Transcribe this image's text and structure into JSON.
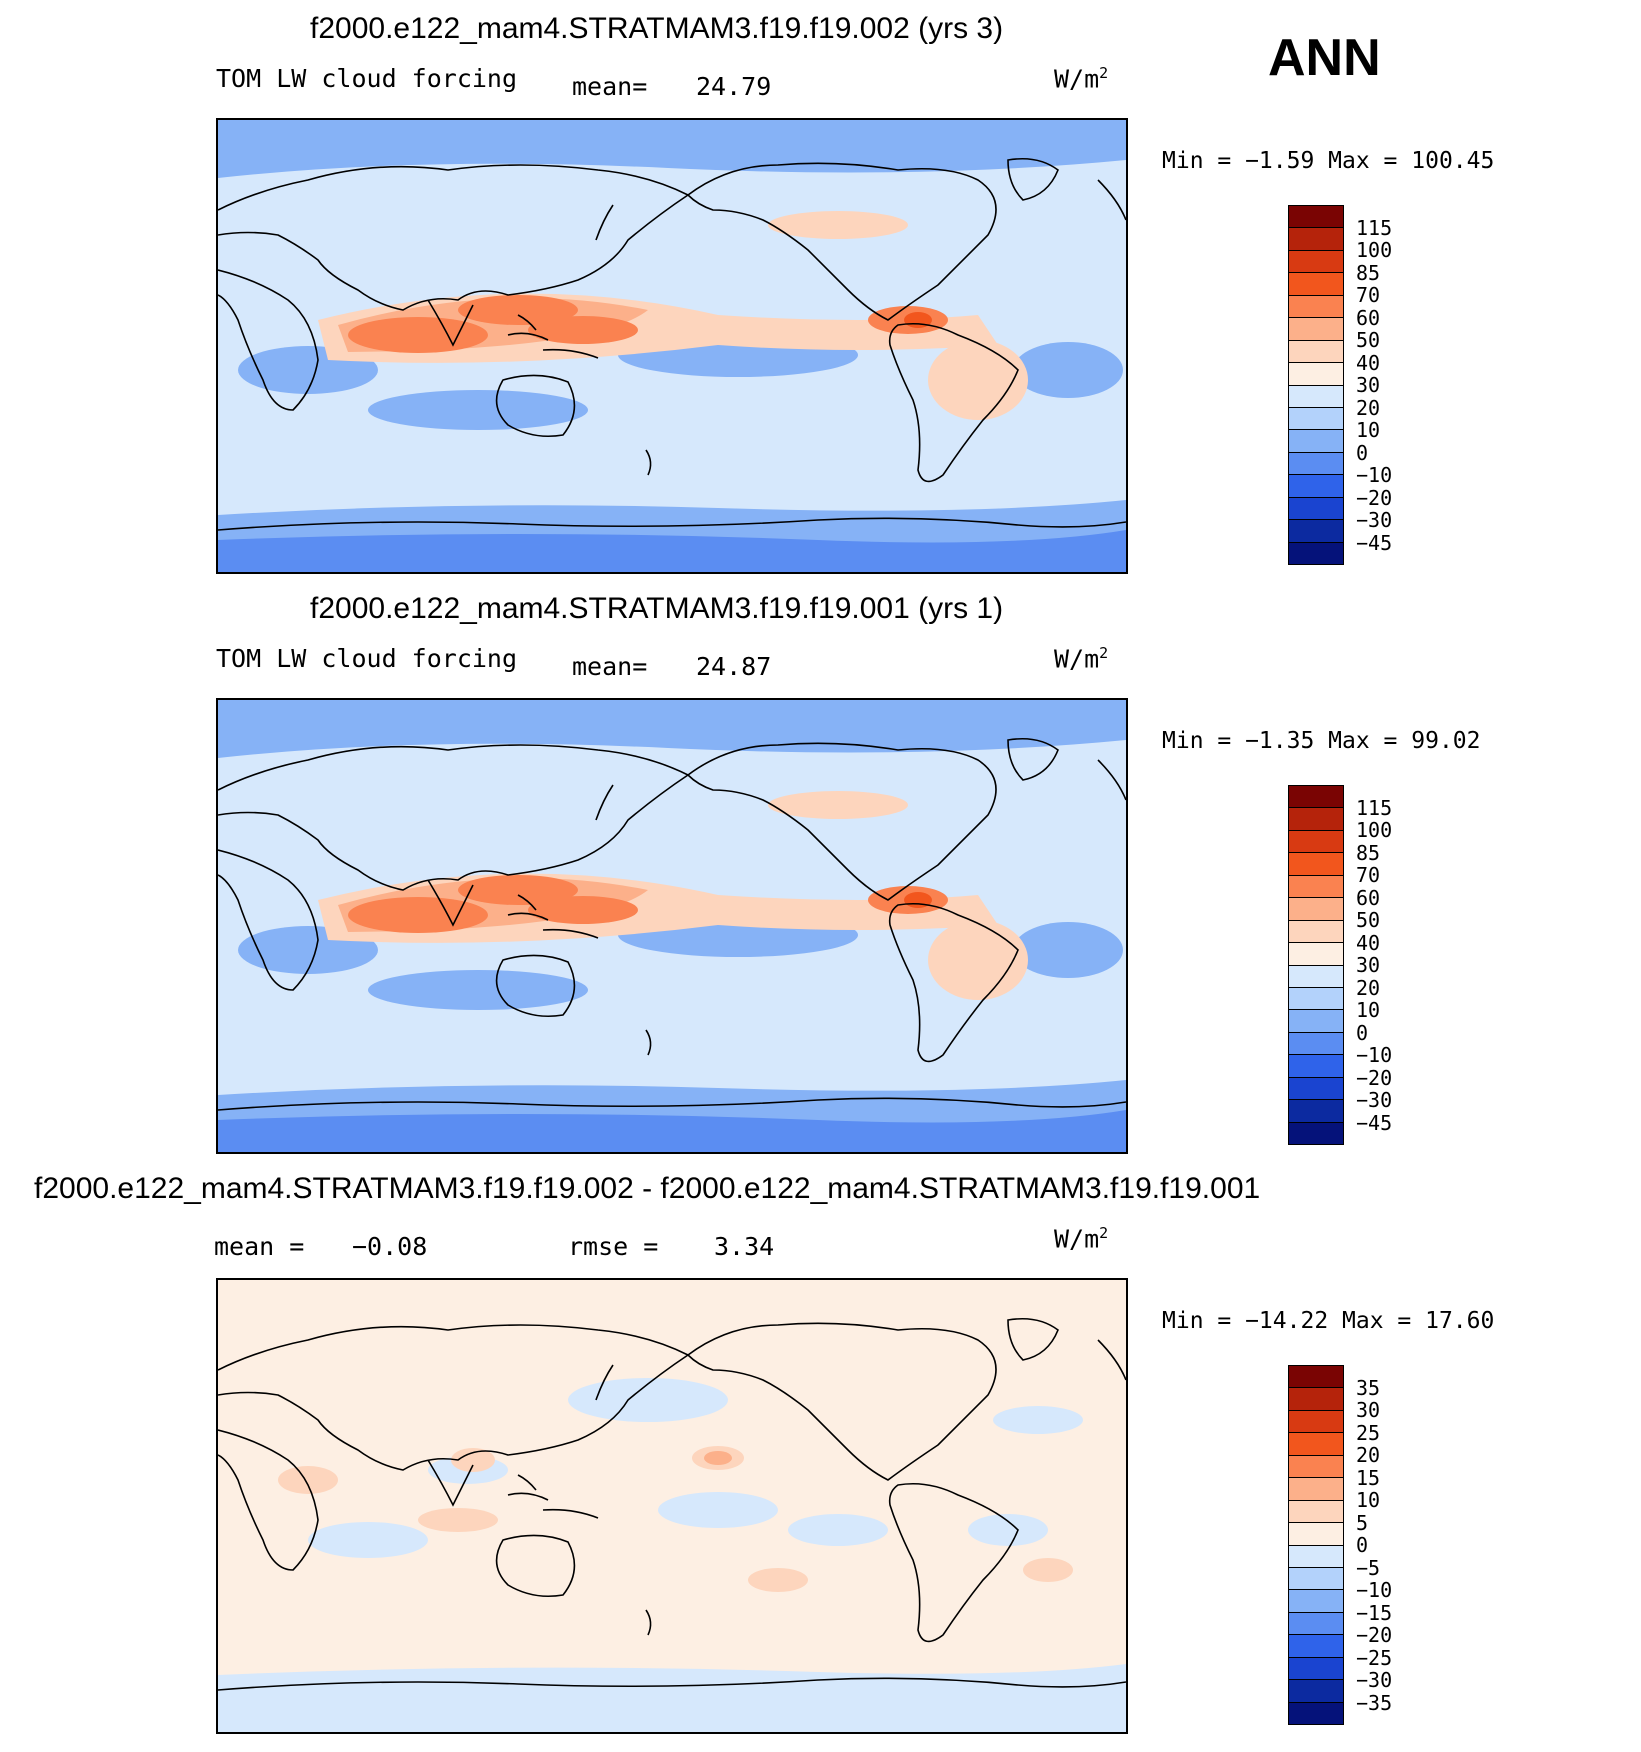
{
  "season": "ANN",
  "panels": [
    {
      "title": "f2000.e122_mam4.STRATMAM3.f19.f19.002 (yrs 3)",
      "left_label": "TOM LW cloud forcing",
      "stat1_label": "mean=",
      "stat1_value": "24.79",
      "stat2_label": "",
      "stat2_value": "",
      "units_base": "W/m",
      "units_exp": "2",
      "range_text": "Min =   −1.59  Max  =  100.45",
      "legend_levels": [
        "115",
        "100",
        "85",
        "70",
        "60",
        "50",
        "40",
        "30",
        "20",
        "10",
        "0",
        "−10",
        "−20",
        "−30",
        "−45"
      ],
      "legend_colors": [
        "#7a0403",
        "#b5230b",
        "#d83a12",
        "#f2561d",
        "#fa8250",
        "#fcb08a",
        "#fdd5bd",
        "#fdefe3",
        "#d6e8fc",
        "#b3d2fb",
        "#86b2f6",
        "#5b8df2",
        "#2f63ea",
        "#1a44d0",
        "#0c2aa0",
        "#05127a"
      ],
      "fields": {
        "base": "#d6e8fc",
        "high_lat": "#86b2f6",
        "polar": "#5b8df2",
        "warm1": "#fdd5bd",
        "warm2": "#fcb08a",
        "warm3": "#fa8250",
        "warm4": "#f2561d"
      }
    },
    {
      "title": "f2000.e122_mam4.STRATMAM3.f19.f19.001 (yrs 1)",
      "left_label": "TOM LW cloud forcing",
      "stat1_label": "mean=",
      "stat1_value": "24.87",
      "stat2_label": "",
      "stat2_value": "",
      "units_base": "W/m",
      "units_exp": "2",
      "range_text": "Min =   −1.35  Max  =   99.02",
      "legend_levels": [
        "115",
        "100",
        "85",
        "70",
        "60",
        "50",
        "40",
        "30",
        "20",
        "10",
        "0",
        "−10",
        "−20",
        "−30",
        "−45"
      ],
      "legend_colors": [
        "#7a0403",
        "#b5230b",
        "#d83a12",
        "#f2561d",
        "#fa8250",
        "#fcb08a",
        "#fdd5bd",
        "#fdefe3",
        "#d6e8fc",
        "#b3d2fb",
        "#86b2f6",
        "#5b8df2",
        "#2f63ea",
        "#1a44d0",
        "#0c2aa0",
        "#05127a"
      ],
      "fields": {
        "base": "#d6e8fc",
        "high_lat": "#86b2f6",
        "polar": "#5b8df2",
        "warm1": "#fdd5bd",
        "warm2": "#fcb08a",
        "warm3": "#fa8250",
        "warm4": "#f2561d"
      }
    },
    {
      "title": "f2000.e122_mam4.STRATMAM3.f19.f19.002 - f2000.e122_mam4.STRATMAM3.f19.f19.001",
      "left_label": "",
      "stat1_label": "mean =",
      "stat1_value": "−0.08",
      "stat2_label": "rmse =",
      "stat2_value": "3.34",
      "units_base": "W/m",
      "units_exp": "2",
      "range_text": "Min  =  −14.22  Max  =   17.60",
      "legend_levels": [
        "35",
        "30",
        "25",
        "20",
        "15",
        "10",
        "5",
        "0",
        "−5",
        "−10",
        "−15",
        "−20",
        "−25",
        "−30",
        "−35"
      ],
      "legend_colors": [
        "#7a0403",
        "#b5230b",
        "#d83a12",
        "#f2561d",
        "#fa8250",
        "#fcb08a",
        "#fdd5bd",
        "#fdefe3",
        "#d6e8fc",
        "#b3d2fb",
        "#86b2f6",
        "#5b8df2",
        "#2f63ea",
        "#1a44d0",
        "#0c2aa0",
        "#05127a"
      ],
      "fields": {
        "base": "#fdefe3",
        "high_lat": "#d6e8fc",
        "polar": "#d6e8fc",
        "warm1": "#fdd5bd",
        "warm2": "#fcb08a",
        "warm3": "#fa8250",
        "warm4": "#f2561d"
      }
    }
  ]
}
